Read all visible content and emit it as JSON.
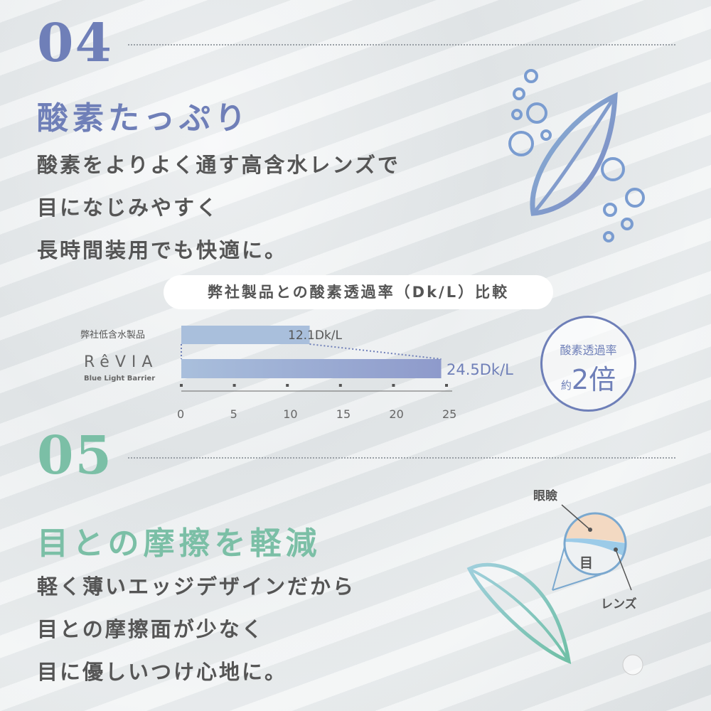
{
  "section04": {
    "number": "04",
    "title": "酸素たっぷり",
    "lines": [
      "酸素をよりよく通す高含水レンズで",
      "目になじみやすく",
      "長時間装用でも快適に。"
    ],
    "color": "#6f7fb8"
  },
  "chart": {
    "heading": "弊社製品との酸素透過率（Dk/L）比較",
    "badge_top": "酸素透過率",
    "badge_prefix": "約",
    "badge_value": "2倍"
  },
  "chart_data": {
    "type": "bar",
    "orientation": "horizontal",
    "categories": [
      "弊社低含水製品",
      "RêVIA Blue Light Barrier"
    ],
    "values": [
      12.1,
      24.5
    ],
    "value_labels": [
      "12.1Dk/L",
      "24.5Dk/L"
    ],
    "xlim": [
      0,
      25
    ],
    "xticks": [
      "0",
      "5",
      "10",
      "15",
      "20",
      "25"
    ],
    "brand": {
      "name": "RêVIA",
      "sub": "Blue Light Barrier"
    }
  },
  "section05": {
    "number": "05",
    "title": "目との摩擦を軽減",
    "lines": [
      "軽く薄いエッジデザインだから",
      "目との摩擦面が少なく",
      "目に優しいつけ心地に。"
    ],
    "color": "#7bbfa6"
  },
  "diagram": {
    "eyelid": "眼瞼",
    "eye": "目",
    "lens": "レンズ"
  }
}
